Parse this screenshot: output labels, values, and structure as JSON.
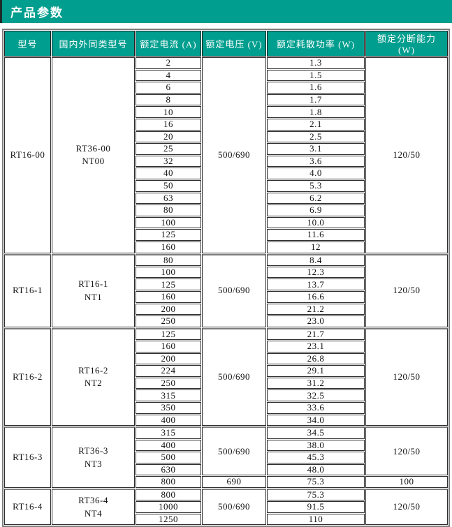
{
  "title_bar": {
    "label": "产品参数"
  },
  "colors": {
    "accent": "#009e8e",
    "section_border": "#7f7f7f",
    "cell_border": "#2e2e2e"
  },
  "table": {
    "columns": [
      "型号",
      "国内外同类型号",
      "额定电流 (A)",
      "额定电压 (V)",
      "额定耗散功率 (W)",
      "额定分断能力 (W)"
    ],
    "sections": [
      {
        "model": "RT16-00",
        "equivalent_lines": [
          "RT36-00",
          "NT00"
        ],
        "currents": [
          "2",
          "4",
          "6",
          "8",
          "10",
          "16",
          "20",
          "25",
          "32",
          "40",
          "50",
          "63",
          "80",
          "100",
          "125",
          "160"
        ],
        "powers": [
          "1.3",
          "1.5",
          "1.6",
          "1.7",
          "1.8",
          "2.1",
          "2.5",
          "3.1",
          "3.6",
          "4.0",
          "5.3",
          "6.2",
          "6.9",
          "10.0",
          "11.6",
          "12"
        ],
        "voltage_groups": [
          {
            "value": "500/690",
            "span": 16
          }
        ],
        "breaking_groups": [
          {
            "value": "120/50",
            "span": 16
          }
        ]
      },
      {
        "model": "RT16-1",
        "equivalent_lines": [
          "RT16-1",
          "NT1"
        ],
        "currents": [
          "80",
          "100",
          "125",
          "160",
          "200",
          "250"
        ],
        "powers": [
          "8.4",
          "12.3",
          "13.7",
          "16.6",
          "21.2",
          "23.0"
        ],
        "voltage_groups": [
          {
            "value": "500/690",
            "span": 6
          }
        ],
        "breaking_groups": [
          {
            "value": "120/50",
            "span": 6
          }
        ]
      },
      {
        "model": "RT16-2",
        "equivalent_lines": [
          "RT16-2",
          "NT2"
        ],
        "currents": [
          "125",
          "160",
          "200",
          "224",
          "250",
          "315",
          "350",
          "400"
        ],
        "powers": [
          "21.7",
          "23.1",
          "26.8",
          "29.1",
          "31.2",
          "32.5",
          "33.6",
          "34.0"
        ],
        "voltage_groups": [
          {
            "value": "500/690",
            "span": 8
          }
        ],
        "breaking_groups": [
          {
            "value": "120/50",
            "span": 8
          }
        ]
      },
      {
        "model": "RT16-3",
        "equivalent_lines": [
          "RT36-3",
          "NT3"
        ],
        "currents": [
          "315",
          "400",
          "500",
          "630",
          "800"
        ],
        "powers": [
          "34.5",
          "38.0",
          "45.3",
          "48.0",
          "75.3"
        ],
        "voltage_groups": [
          {
            "value": "500/690",
            "span": 4
          },
          {
            "value": "690",
            "span": 1
          }
        ],
        "breaking_groups": [
          {
            "value": "120/50",
            "span": 4
          },
          {
            "value": "100",
            "span": 1
          }
        ]
      },
      {
        "model": "RT16-4",
        "equivalent_lines": [
          "RT36-4",
          "NT4"
        ],
        "currents": [
          "800",
          "1000",
          "1250"
        ],
        "powers": [
          "75.3",
          "91.5",
          "110"
        ],
        "voltage_groups": [
          {
            "value": "500/690",
            "span": 3
          }
        ],
        "breaking_groups": [
          {
            "value": "120/50",
            "span": 3
          }
        ]
      }
    ]
  }
}
